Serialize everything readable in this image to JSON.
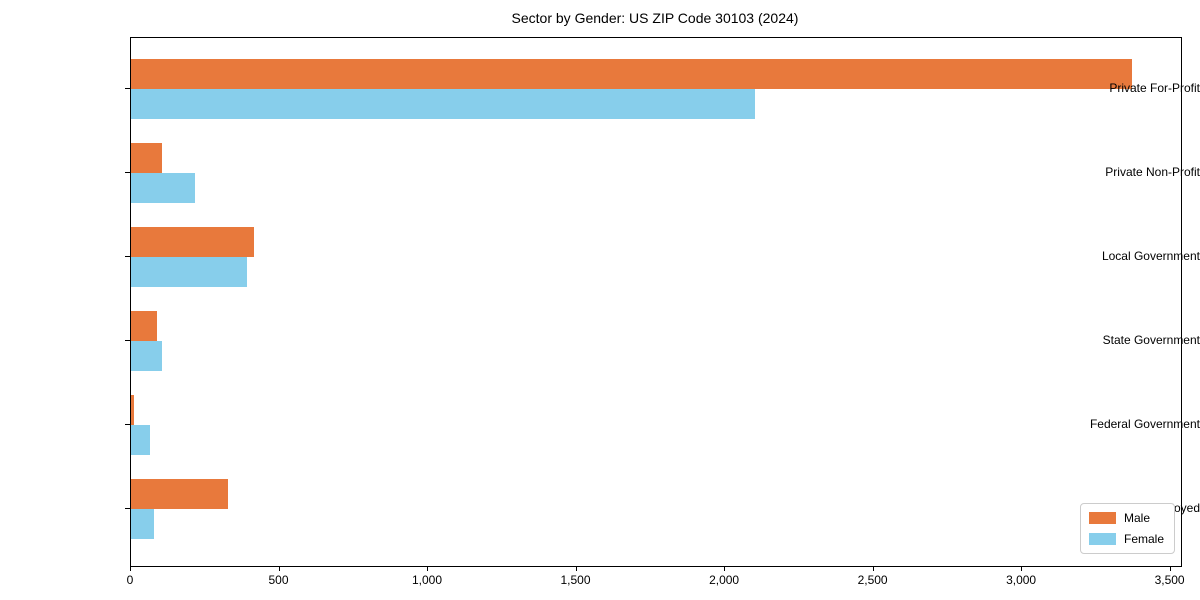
{
  "chart_data": {
    "type": "bar",
    "orientation": "horizontal",
    "title": "Sector by Gender: US ZIP Code 30103 (2024)",
    "categories": [
      "Private For-Profit",
      "Private Non-Profit",
      "Local Government",
      "State Government",
      "Federal Government",
      "Self-Employed"
    ],
    "series": [
      {
        "name": "Male",
        "color": "#E8793C",
        "values": [
          3370,
          105,
          415,
          88,
          10,
          325
        ]
      },
      {
        "name": "Female",
        "color": "#87CEEB",
        "values": [
          2100,
          215,
          390,
          104,
          64,
          78
        ]
      }
    ],
    "xlabel": "",
    "ylabel": "",
    "xlim": [
      0,
      3535
    ],
    "xticks": [
      0,
      500,
      1000,
      1500,
      2000,
      2500,
      3000,
      3500
    ],
    "xtick_labels": [
      "0",
      "500",
      "1,000",
      "1,500",
      "2,000",
      "2,500",
      "3,000",
      "3,500"
    ],
    "grid": false,
    "legend_position": "lower right",
    "axis_color": "#000000",
    "background_color": "#ffffff"
  }
}
